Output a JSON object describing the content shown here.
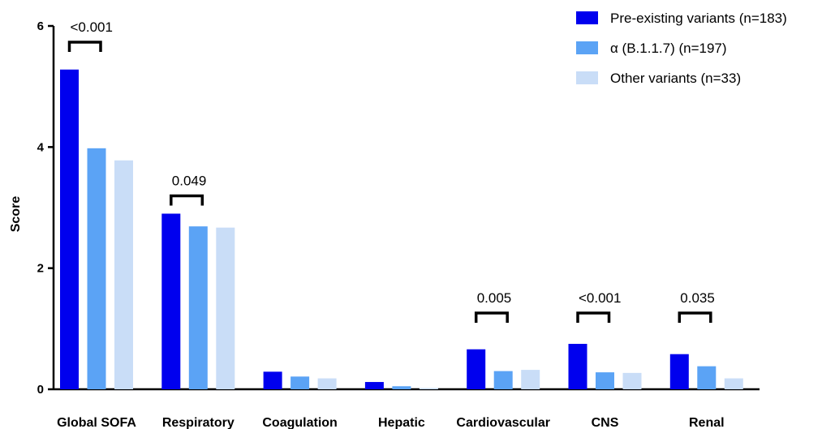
{
  "chart_data": {
    "type": "bar",
    "ylabel": "Score",
    "ylim": [
      0,
      6
    ],
    "yticks": [
      0,
      2,
      4,
      6
    ],
    "categories": [
      "Global SOFA",
      "Respiratory",
      "Coagulation",
      "Hepatic",
      "Cardiovascular",
      "CNS",
      "Renal"
    ],
    "series": [
      {
        "name": "Pre-existing variants (n=183)",
        "color": "#0000ee",
        "values": [
          5.28,
          2.9,
          0.29,
          0.12,
          0.66,
          0.75,
          0.58
        ]
      },
      {
        "name": "α (B.1.1.7) (n=197)",
        "color": "#5ba3f5",
        "values": [
          3.98,
          2.69,
          0.21,
          0.05,
          0.3,
          0.28,
          0.38
        ]
      },
      {
        "name": "Other variants (n=33)",
        "color": "#c9ddf7",
        "values": [
          3.78,
          2.67,
          0.18,
          0.02,
          0.32,
          0.27,
          0.18
        ]
      }
    ],
    "annotations": [
      {
        "category": "Global SOFA",
        "text": "<0.001"
      },
      {
        "category": "Respiratory",
        "text": "0.049"
      },
      {
        "category": "Cardiovascular",
        "text": "0.005"
      },
      {
        "category": "CNS",
        "text": "<0.001"
      },
      {
        "category": "Renal",
        "text": "0.035"
      }
    ],
    "legend_position": "top-right",
    "grid": false
  }
}
